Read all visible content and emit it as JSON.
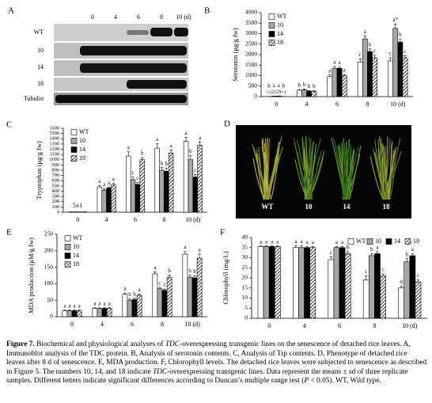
{
  "figure": {
    "panel_a": {
      "label": "A",
      "times": [
        "0",
        "4",
        "6",
        "8",
        "10 (d)"
      ],
      "rows": [
        "WT",
        "10",
        "14",
        "18",
        "Tubulin"
      ]
    },
    "panel_d": {
      "label": "D",
      "plants": [
        "WT",
        "10",
        "14",
        "18"
      ]
    },
    "caption": {
      "label": "Figure 7.",
      "parts": [
        "Biochemical and physiological analyses of ",
        "TDC",
        "-overexpressing transgenic lines on the senescence of detached rice leaves. A, Immunoblot analysis of the TDC protein. B, Analysis of serotonin contents. C, Analysis of Trp contents. D, Phenotype of detached rice leaves after 8 d of senescence. E, MDA production. F, Chlorophyll levels. The detached rice leaves were subjected to senescence as described in Figure 5. The numbers 10, 14, and 18 indicate ",
        "TDC",
        "-overexpressing transgenic lines. Data represent the means ± sd of three replicate samples. Different letters indicate significant differences according to Duncan’s multiple range test (",
        "P",
        " < 0.05). WT, Wild type."
      ]
    }
  },
  "chart_data": [
    {
      "type": "bar",
      "label": "B",
      "ylabel": "Serotonin (μg/g fw)",
      "categories": [
        "0",
        "4",
        "6",
        "8",
        "10 (d)"
      ],
      "ylim": [
        0,
        4000
      ],
      "yticks": [
        0,
        500,
        1000,
        1500,
        2000,
        2500,
        3000,
        3500,
        4000
      ],
      "legend": "upper left",
      "legend_orientation": "vertical",
      "series": [
        {
          "name": "WT",
          "color": "#ffffff",
          "values": [
            0,
            300,
            950,
            1650,
            1700
          ],
          "errors": [
            0,
            40,
            80,
            150,
            150
          ],
          "letters": [
            "b",
            "b",
            "a",
            "c",
            "c"
          ],
          "value_labels": [
            "<1",
            null,
            null,
            null,
            null
          ]
        },
        {
          "name": "10",
          "color": "#a6a6a6",
          "values": [
            21,
            320,
            1350,
            2750,
            3250
          ],
          "errors": [
            3,
            40,
            80,
            150,
            200
          ],
          "letters": [
            "a",
            "b",
            "a",
            "a",
            "a*"
          ],
          "value_labels": [
            "21",
            null,
            null,
            null,
            null
          ]
        },
        {
          "name": "14",
          "color": "#000000",
          "values": [
            29,
            260,
            1350,
            2150,
            2600
          ],
          "errors": [
            3,
            30,
            60,
            120,
            150
          ],
          "letters": [
            "a",
            "b",
            "a",
            "b",
            "b"
          ],
          "value_labels": [
            "29",
            null,
            null,
            null,
            null
          ]
        },
        {
          "name": "18",
          "color": "#ffffff",
          "pattern": "hatch",
          "values": [
            0,
            250,
            1000,
            1850,
            1850
          ],
          "errors": [
            0,
            30,
            60,
            120,
            100
          ],
          "letters": [
            "b",
            "b",
            "a",
            "c",
            "c"
          ],
          "value_labels": [
            "<1",
            null,
            null,
            null,
            null
          ]
        }
      ]
    },
    {
      "type": "bar",
      "label": "C",
      "ylabel": "Tryptophan (μg/g fw)",
      "categories": [
        "0",
        "4",
        "6",
        "8",
        "10 (d)"
      ],
      "annotation": "5±1",
      "ylim": [
        0,
        1600
      ],
      "yticks": [
        0,
        100,
        200,
        300,
        400,
        500,
        600,
        700,
        800,
        900,
        1000,
        1100,
        1200,
        1300,
        1400,
        1500,
        1600
      ],
      "legend": "upper left",
      "legend_orientation": "vertical",
      "series": [
        {
          "name": "WT",
          "color": "#ffffff",
          "values": [
            5,
            480,
            1070,
            1220,
            1350
          ],
          "errors": [
            1,
            30,
            80,
            90,
            80
          ],
          "letters": [
            null,
            "a",
            "a",
            "a",
            "a"
          ]
        },
        {
          "name": "10",
          "color": "#a6a6a6",
          "values": [
            5,
            420,
            620,
            800,
            1000
          ],
          "errors": [
            1,
            30,
            50,
            50,
            80
          ],
          "letters": [
            null,
            "a",
            "c",
            "b",
            "b"
          ]
        },
        {
          "name": "14",
          "color": "#000000",
          "values": [
            5,
            460,
            530,
            780,
            670
          ],
          "errors": [
            1,
            20,
            40,
            60,
            50
          ],
          "letters": [
            null,
            "a",
            "c",
            "b",
            "c"
          ]
        },
        {
          "name": "18",
          "color": "#ffffff",
          "pattern": "hatch",
          "values": [
            5,
            520,
            1000,
            1130,
            1280
          ],
          "errors": [
            1,
            30,
            40,
            60,
            60
          ],
          "letters": [
            null,
            "a",
            "b",
            "a",
            "a"
          ]
        }
      ]
    },
    {
      "type": "bar",
      "label": "E",
      "ylabel": "MDA production (μM/g fw)",
      "categories": [
        "0",
        "4",
        "6",
        "8",
        "10 (d)"
      ],
      "ylim": [
        0,
        250
      ],
      "yticks": [
        0,
        50,
        100,
        150,
        200,
        250
      ],
      "legend": "upper left",
      "legend_orientation": "vertical",
      "series": [
        {
          "name": "WT",
          "color": "#ffffff",
          "values": [
            18,
            25,
            68,
            130,
            190
          ],
          "errors": [
            2,
            2,
            4,
            6,
            8
          ],
          "letters": [
            "a",
            "a",
            "a",
            "a",
            "a"
          ]
        },
        {
          "name": "10",
          "color": "#a6a6a6",
          "values": [
            18,
            25,
            50,
            85,
            120
          ],
          "errors": [
            2,
            2,
            4,
            4,
            6
          ],
          "letters": [
            "a",
            "a",
            "b",
            "c",
            "b"
          ]
        },
        {
          "name": "14",
          "color": "#000000",
          "values": [
            18,
            25,
            52,
            80,
            118
          ],
          "errors": [
            2,
            2,
            4,
            4,
            6
          ],
          "letters": [
            "a",
            "a",
            "b",
            "c",
            "b"
          ]
        },
        {
          "name": "18",
          "color": "#ffffff",
          "pattern": "hatch",
          "values": [
            18,
            25,
            65,
            120,
            178
          ],
          "errors": [
            2,
            2,
            4,
            6,
            12
          ],
          "letters": [
            "a",
            "a",
            "a",
            "b",
            "a"
          ]
        }
      ]
    },
    {
      "type": "bar",
      "label": "F",
      "ylabel": "Chlorophyll (mg/L)",
      "categories": [
        "0",
        "4",
        "6",
        "8",
        "10 (d)"
      ],
      "ylim": [
        0,
        40
      ],
      "yticks": [
        0,
        5,
        10,
        15,
        20,
        25,
        30,
        35,
        40
      ],
      "legend": "upper right",
      "legend_orientation": "horizontal",
      "series": [
        {
          "name": "WT",
          "color": "#ffffff",
          "values": [
            35.5,
            35,
            29,
            19,
            15
          ],
          "errors": [
            0.3,
            1,
            1.5,
            2,
            1
          ],
          "letters": [
            "a",
            "a",
            "c",
            "c",
            "d"
          ]
        },
        {
          "name": "10",
          "color": "#a6a6a6",
          "values": [
            35.5,
            35,
            35,
            31,
            28
          ],
          "errors": [
            0.3,
            1,
            0.5,
            1,
            1.5
          ],
          "letters": [
            "a",
            "a",
            "a",
            "b",
            "b"
          ]
        },
        {
          "name": "14",
          "color": "#000000",
          "values": [
            35.5,
            35,
            35,
            32,
            31
          ],
          "errors": [
            0.3,
            0.5,
            0.5,
            1,
            1
          ],
          "letters": [
            "a",
            "a",
            "a",
            "a",
            "a"
          ]
        },
        {
          "name": "18",
          "color": "#ffffff",
          "pattern": "hatch",
          "values": [
            35.5,
            35,
            32,
            21,
            18
          ],
          "errors": [
            0.3,
            0.5,
            1,
            1,
            1
          ],
          "letters": [
            "a",
            "a",
            "b",
            "c",
            "c"
          ]
        }
      ]
    }
  ]
}
